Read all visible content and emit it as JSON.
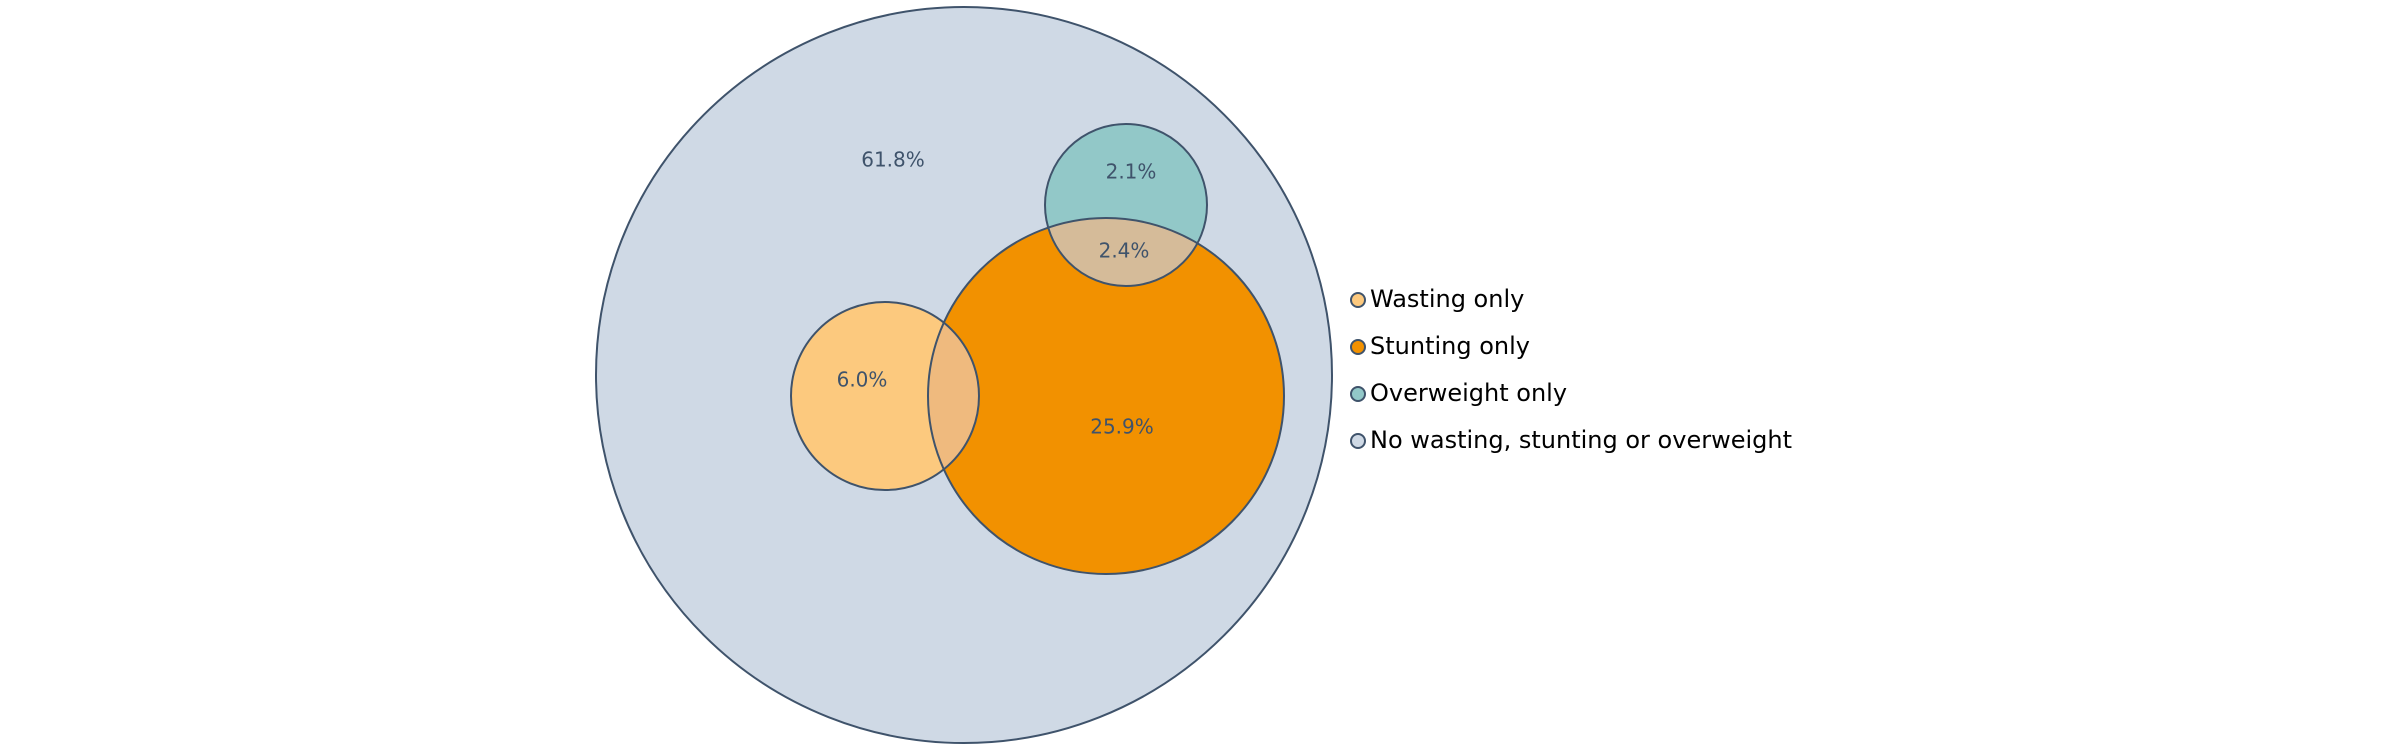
{
  "chart_data": {
    "type": "venn",
    "regions": [
      {
        "key": "none",
        "value_label": "61.8%",
        "value": 61.8
      },
      {
        "key": "wasting",
        "value_label": "6.0%",
        "value": 6.0
      },
      {
        "key": "stunting",
        "value_label": "25.9%",
        "value": 25.9
      },
      {
        "key": "overweight",
        "value_label": "2.1%",
        "value": 2.1
      },
      {
        "key": "stunting_overweight",
        "value_label": "2.4%",
        "value": 2.4
      }
    ],
    "legend": [
      {
        "label": "Wasting only",
        "color": "#fcc97e"
      },
      {
        "label": "Stunting only",
        "color": "#f29100"
      },
      {
        "label": "Overweight only",
        "color": "#92c8c8"
      },
      {
        "label": "No wasting, stunting or overweight",
        "color": "#cfd9e5"
      }
    ],
    "colors": {
      "outline": "#3f536b",
      "none": "#cfd9e5",
      "wasting": "#fcc97e",
      "stunting": "#f29100",
      "overweight": "#92c8c8",
      "wasting_stunting_overlap": "#efba7e",
      "stunting_overweight_overlap": "#d5bb99"
    }
  }
}
